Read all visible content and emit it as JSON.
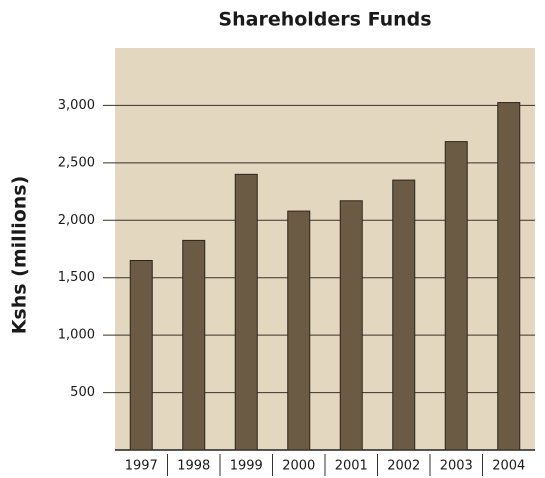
{
  "chart_data": {
    "type": "bar",
    "title": "Shareholders Funds",
    "y_label": "Kshs (millions)",
    "categories": [
      "1997",
      "1998",
      "1999",
      "2000",
      "2001",
      "2002",
      "2003",
      "2004"
    ],
    "values": [
      1650,
      1825,
      2400,
      2080,
      2170,
      2350,
      2685,
      3025
    ],
    "color": "#6b5a44",
    "ylim": [
      0,
      3500
    ],
    "yticks": [
      500,
      {
        "value": 1000,
        "label": "1,000"
      },
      {
        "value": 1500,
        "label": "1,500"
      },
      {
        "value": 2000,
        "label": "2,000"
      },
      {
        "value": 2500,
        "label": "2,500"
      },
      {
        "value": 3000,
        "label": "3,000"
      }
    ],
    "grid": true
  }
}
